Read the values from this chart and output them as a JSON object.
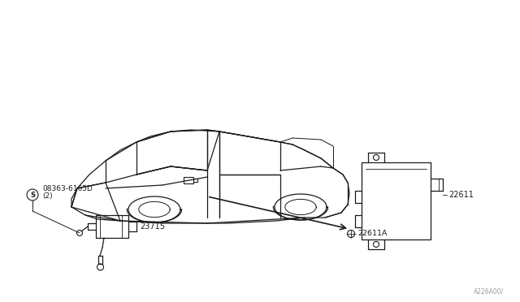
{
  "bg_color": "#ffffff",
  "line_color": "#1a1a1a",
  "figsize": [
    6.4,
    3.72
  ],
  "dpi": 100,
  "labels": {
    "part1": "22611",
    "part2": "22611A",
    "part3": "23715",
    "part4_line1": "08363-6165D",
    "part4_line2": "(2)"
  },
  "watermark": "A226A00/"
}
